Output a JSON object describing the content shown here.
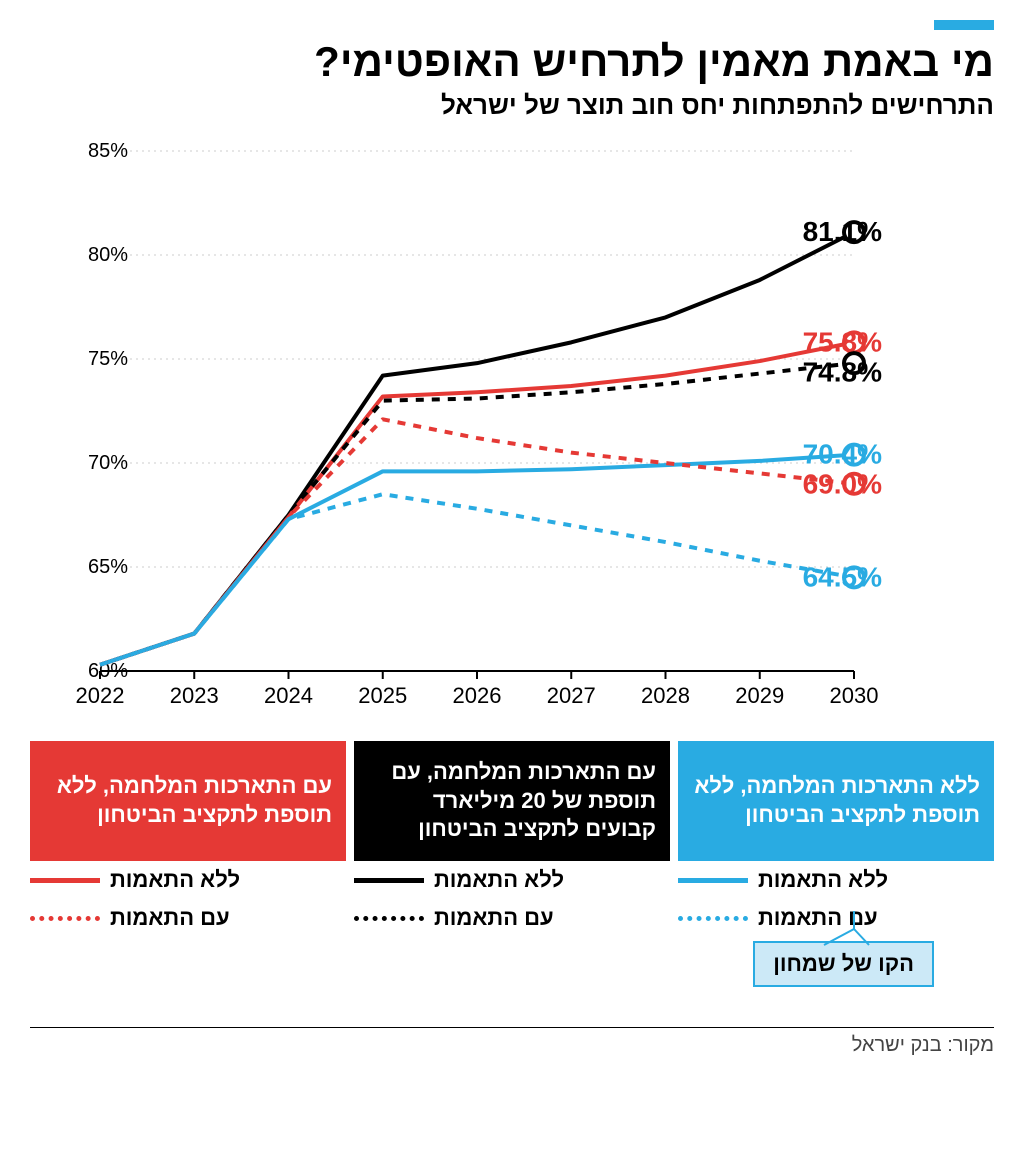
{
  "accent_color": "#29abe2",
  "title": "מי באמת מאמין לתרחיש האופטימי?",
  "subtitle": "התרחישים להתפתחות יחס חוב תוצר של ישראל",
  "chart": {
    "type": "line",
    "x_categories": [
      "2022",
      "2023",
      "2024",
      "2025",
      "2026",
      "2027",
      "2028",
      "2029",
      "2030"
    ],
    "ylim": [
      60,
      85
    ],
    "ytick_step": 5,
    "yticks": [
      "60%",
      "65%",
      "70%",
      "75%",
      "80%",
      "85%"
    ],
    "grid_color": "#cccccc",
    "axis_color": "#000000",
    "background": "#ffffff",
    "line_width_main": 4,
    "line_width_dash": 4,
    "marker_radius": 10,
    "marker_stroke": 4,
    "series": [
      {
        "id": "black_solid",
        "color": "#000000",
        "dash": "none",
        "values": [
          60.3,
          61.8,
          67.5,
          74.2,
          74.8,
          75.8,
          77.0,
          78.8,
          81.1
        ],
        "end_label": "81.1%"
      },
      {
        "id": "red_solid",
        "color": "#e53935",
        "dash": "none",
        "values": [
          60.3,
          61.8,
          67.4,
          73.2,
          73.4,
          73.7,
          74.2,
          74.9,
          75.8
        ],
        "end_label": "75.8%"
      },
      {
        "id": "black_dash",
        "color": "#000000",
        "dash": "8,8",
        "values": [
          60.3,
          61.8,
          67.5,
          73.0,
          73.1,
          73.4,
          73.8,
          74.3,
          74.8
        ],
        "end_label": "74.8%"
      },
      {
        "id": "blue_solid",
        "color": "#29abe2",
        "dash": "none",
        "values": [
          60.3,
          61.8,
          67.3,
          69.6,
          69.6,
          69.7,
          69.9,
          70.1,
          70.4
        ],
        "end_label": "70.4%"
      },
      {
        "id": "red_dash",
        "color": "#e53935",
        "dash": "8,8",
        "values": [
          60.3,
          61.8,
          67.4,
          72.1,
          71.2,
          70.5,
          70.0,
          69.5,
          69.0
        ],
        "end_label": "69.0%"
      },
      {
        "id": "blue_dash",
        "color": "#29abe2",
        "dash": "8,8",
        "values": [
          60.3,
          61.8,
          67.3,
          68.5,
          67.8,
          67.0,
          66.2,
          65.3,
          64.5
        ],
        "end_label": "64.5%"
      }
    ],
    "end_label_fontsize": 28
  },
  "legend": {
    "groups": [
      {
        "color": "#e53935",
        "header": "עם התארכות המלחמה, ללא תוספת לתקציב הביטחון",
        "rows": [
          {
            "text": "ללא התאמות",
            "dash": "none"
          },
          {
            "text": "עם התאמות",
            "dash": "8,8"
          }
        ]
      },
      {
        "color": "#000000",
        "header": "עם התארכות המלחמה, עם תוספת של 20 מיליארד קבועים לתקציב הביטחון",
        "rows": [
          {
            "text": "ללא התאמות",
            "dash": "none"
          },
          {
            "text": "עם התאמות",
            "dash": "8,8"
          }
        ]
      },
      {
        "color": "#29abe2",
        "header": "ללא התארכות המלחמה, ללא תוספת לתקציב הביטחון",
        "rows": [
          {
            "text": "ללא התאמות",
            "dash": "none"
          },
          {
            "text": "עם התאמות",
            "dash": "8,8"
          }
        ]
      }
    ]
  },
  "callout": {
    "text": "הקו של שמחון",
    "bg": "#cce9f7",
    "border": "#29abe2"
  },
  "source": "מקור: בנק ישראל"
}
